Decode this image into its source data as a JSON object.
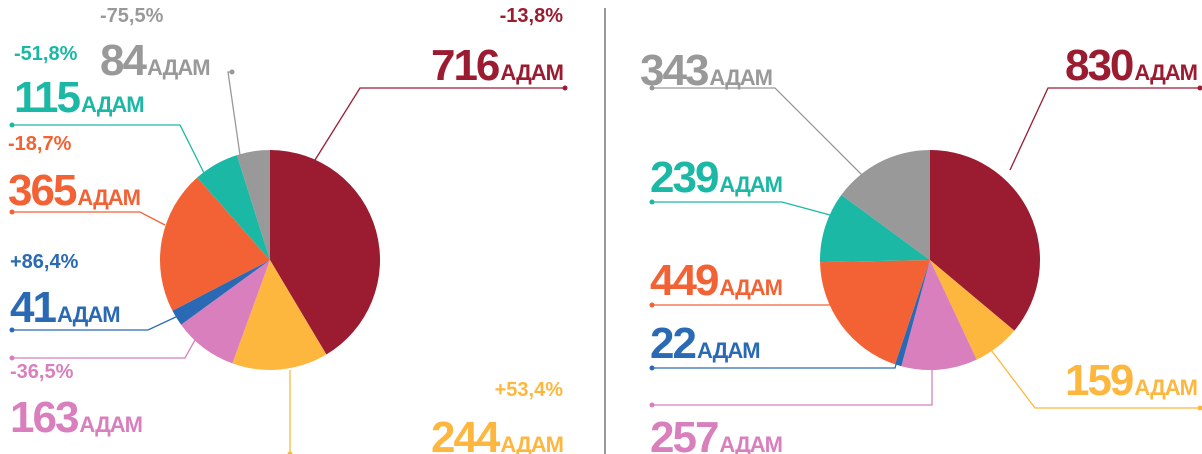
{
  "chart_data": [
    {
      "type": "pie",
      "unit": "АДАМ",
      "values": [
        716,
        244,
        163,
        41,
        365,
        115,
        84
      ],
      "changes": [
        "-13,8%",
        "+53,4%",
        "-36,5%",
        "+86,4%",
        "-18,7%",
        "-51,8%",
        "-75,5%"
      ],
      "colors": [
        "#9b1b30",
        "#fdb73e",
        "#d97fbd",
        "#2a6ab5",
        "#f26234",
        "#1bb8a6",
        "#999999"
      ]
    },
    {
      "type": "pie",
      "unit": "АДАМ",
      "values": [
        830,
        159,
        257,
        22,
        449,
        239,
        343
      ],
      "colors": [
        "#9b1b30",
        "#fdb73e",
        "#d97fbd",
        "#2a6ab5",
        "#f26234",
        "#1bb8a6",
        "#999999"
      ]
    }
  ]
}
